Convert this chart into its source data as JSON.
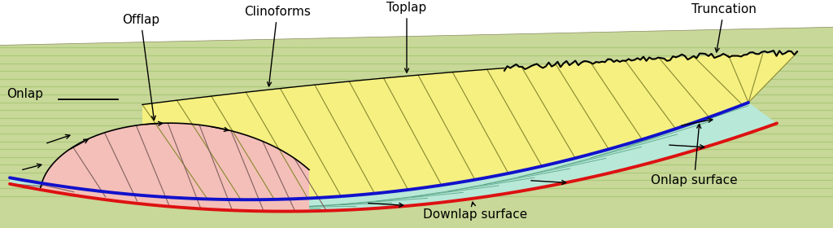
{
  "bg_color": "#ffffff",
  "green_bg_color": "#c8d898",
  "green_line_color": "#a8c878",
  "pink_color": "#f4bfb8",
  "yellow_color": "#f5f080",
  "teal_color": "#b8e8d8",
  "red_line_color": "#dd1111",
  "blue_line_color": "#1111cc",
  "black": "#000000",
  "labels": {
    "offlap": "Offlap",
    "clinoforms": "Clinoforms",
    "toplap": "Toplap",
    "truncation": "Truncation",
    "onlap": "Onlap",
    "onlap_surface": "Onlap surface",
    "downlap_surface": "Downlap surface"
  },
  "figsize": [
    10.24,
    2.8
  ],
  "dpi": 100
}
